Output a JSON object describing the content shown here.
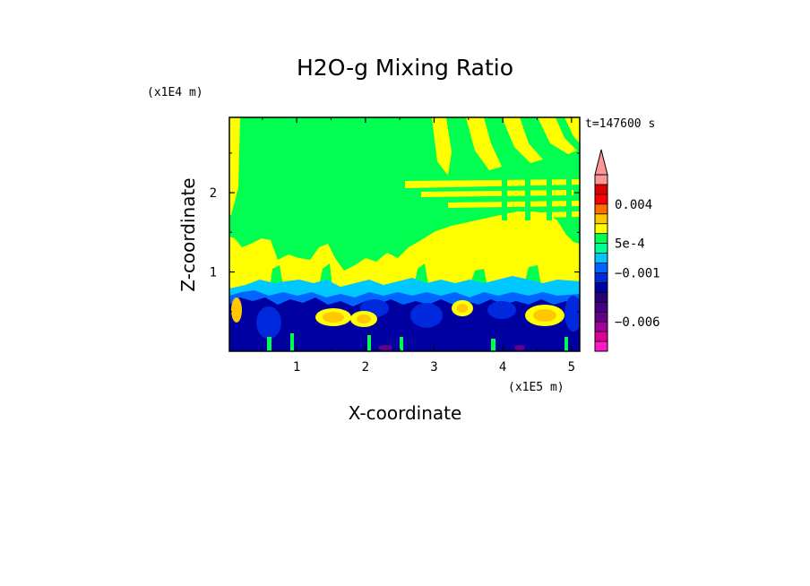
{
  "chart_data": {
    "type": "heatmap",
    "title": "H2O-g Mixing Ratio",
    "xlabel": "X-coordinate",
    "ylabel": "Z-coordinate",
    "x_unit": "(x1E5 m)",
    "y_unit": "(x1E4 m)",
    "time_label": "t=147600 s",
    "xlim": [
      0.02,
      5.12
    ],
    "ylim": [
      0.0,
      2.95
    ],
    "x_ticks": [
      "1",
      "2",
      "3",
      "4",
      "5"
    ],
    "x_tick_values": [
      1,
      2,
      3,
      4,
      5
    ],
    "y_ticks": [
      "1",
      "2"
    ],
    "y_tick_values": [
      1,
      2
    ],
    "colorbar": {
      "labels": [
        "0.004",
        "5e-4",
        "−0.001",
        "−0.006"
      ],
      "label_values": [
        0.004,
        0.0005,
        -0.001,
        -0.006
      ],
      "levels": [
        -0.009,
        -0.008,
        -0.007,
        -0.006,
        -0.005,
        -0.004,
        -0.003,
        -0.002,
        -0.001,
        -0.0005,
        0.0,
        0.0005,
        0.001,
        0.002,
        0.003,
        0.004,
        0.005,
        0.006
      ],
      "colors": [
        "#ff19c8",
        "#dc0096",
        "#a00096",
        "#64008c",
        "#460082",
        "#280078",
        "#0000a0",
        "#0028dc",
        "#0064ff",
        "#00c8ff",
        "#00ff96",
        "#00ff50",
        "#ffff00",
        "#ffc800",
        "#ff6e00",
        "#ff0000",
        "#dc0000",
        "#ff9696"
      ],
      "extend": "max"
    },
    "field_summary": {
      "upper_layer_color": "#00ff50",
      "mid_layer_color": "#ffff00",
      "boundary_layer_colors": [
        "#0000a0",
        "#0028dc",
        "#00c8ff"
      ]
    }
  }
}
